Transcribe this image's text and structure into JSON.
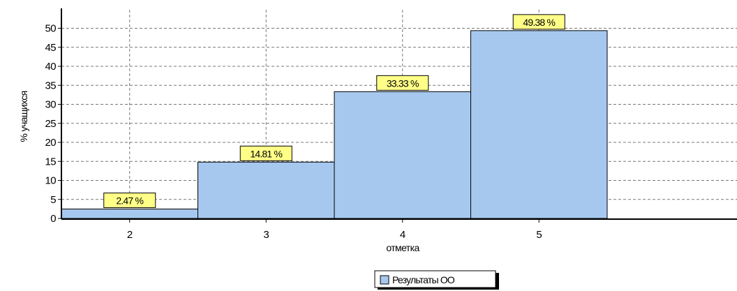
{
  "chart_data": {
    "type": "bar",
    "categories": [
      "2",
      "3",
      "4",
      "5"
    ],
    "series": [
      {
        "name": "Результаты ОО",
        "values": [
          2.47,
          14.81,
          33.33,
          49.38
        ],
        "color": "#a6c8ee"
      }
    ],
    "data_labels": [
      "2.47 %",
      "14.81 %",
      "33.33 %",
      "49.38 %"
    ],
    "xlabel": "отметка",
    "ylabel": "% учащихся",
    "ylim": [
      0,
      55
    ],
    "yticks": [
      0,
      5,
      10,
      15,
      20,
      25,
      30,
      35,
      40,
      45,
      50
    ],
    "grid": true,
    "legend": "bottom-center",
    "label_bg_color": "#ffff88"
  }
}
